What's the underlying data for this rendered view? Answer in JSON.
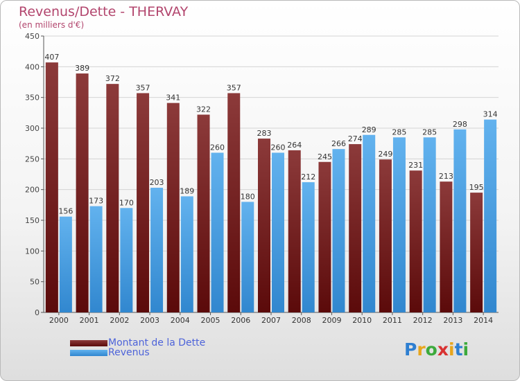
{
  "title": "Revenus/Dette - THERVAY",
  "subtitle": "(en milliers d'€)",
  "brand": {
    "text": "Proxiti",
    "colors": [
      "#2e7fd1",
      "#e8a61d",
      "#3caa3c",
      "#d83232",
      "#e8a61d",
      "#2e7fd1",
      "#3caa3c"
    ]
  },
  "colors": {
    "title": "#b2456d",
    "dette_top": "#8c3a3a",
    "dette_bottom": "#5b0a0a",
    "revenus_top": "#62b2ee",
    "revenus_bottom": "#3187cf",
    "legend_text": "#4d63d9"
  },
  "chart_data": {
    "type": "bar",
    "title": "Revenus/Dette - THERVAY",
    "subtitle": "(en milliers d'€)",
    "categories": [
      "2000",
      "2001",
      "2002",
      "2003",
      "2004",
      "2005",
      "2006",
      "2007",
      "2008",
      "2009",
      "2010",
      "2011",
      "2012",
      "2013",
      "2014"
    ],
    "series": [
      {
        "name": "Montant de la Dette",
        "values": [
          407,
          389,
          372,
          357,
          341,
          322,
          357,
          283,
          264,
          245,
          274,
          249,
          231,
          213,
          195
        ]
      },
      {
        "name": "Revenus",
        "values": [
          156,
          173,
          170,
          203,
          189,
          260,
          180,
          260,
          212,
          266,
          289,
          285,
          285,
          298,
          314
        ]
      }
    ],
    "ylim": [
      0,
      450
    ],
    "yticks": [
      0,
      50,
      100,
      150,
      200,
      250,
      300,
      350,
      400,
      450
    ],
    "grid": true,
    "legend_position": "bottom-left"
  }
}
